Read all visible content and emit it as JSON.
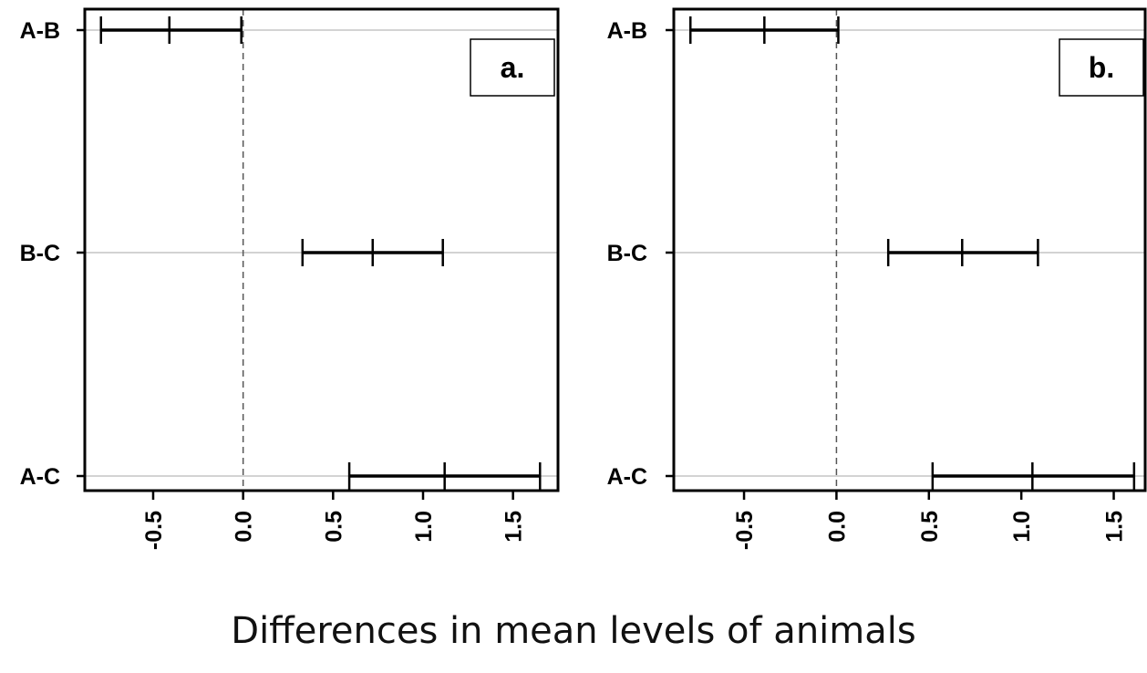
{
  "chart_data": [
    {
      "type": "errorbar",
      "panel_label": "a.",
      "categories": [
        "A-B",
        "B-C",
        "A-C"
      ],
      "series": [
        {
          "lower": -0.79,
          "estimate": -0.41,
          "upper": -0.01
        },
        {
          "lower": 0.33,
          "estimate": 0.72,
          "upper": 1.11
        },
        {
          "lower": 0.59,
          "estimate": 1.12,
          "upper": 1.65
        }
      ],
      "xticks": [
        "-0.5",
        "0.0",
        "0.5",
        "1.0",
        "1.5"
      ],
      "xtick_values": [
        -0.5,
        0.0,
        0.5,
        1.0,
        1.5
      ],
      "xlim": [
        -0.88,
        1.75
      ],
      "reference_line": 0.0,
      "grid": "horizontal"
    },
    {
      "type": "errorbar",
      "panel_label": "b.",
      "categories": [
        "A-B",
        "B-C",
        "A-C"
      ],
      "series": [
        {
          "lower": -0.79,
          "estimate": -0.39,
          "upper": 0.01
        },
        {
          "lower": 0.28,
          "estimate": 0.68,
          "upper": 1.09
        },
        {
          "lower": 0.52,
          "estimate": 1.06,
          "upper": 1.61
        }
      ],
      "xticks": [
        "-0.5",
        "0.0",
        "0.5",
        "1.0",
        "1.5"
      ],
      "xtick_values": [
        -0.5,
        0.0,
        0.5,
        1.0,
        1.5
      ],
      "xlim": [
        -0.88,
        1.67
      ],
      "reference_line": 0.0,
      "grid": "horizontal"
    }
  ],
  "xlabel": "Differences in mean levels of animals",
  "colors": {
    "bars": "#000000",
    "grid": "#d3d3d3",
    "reference": "#555555",
    "frame": "#000000"
  }
}
